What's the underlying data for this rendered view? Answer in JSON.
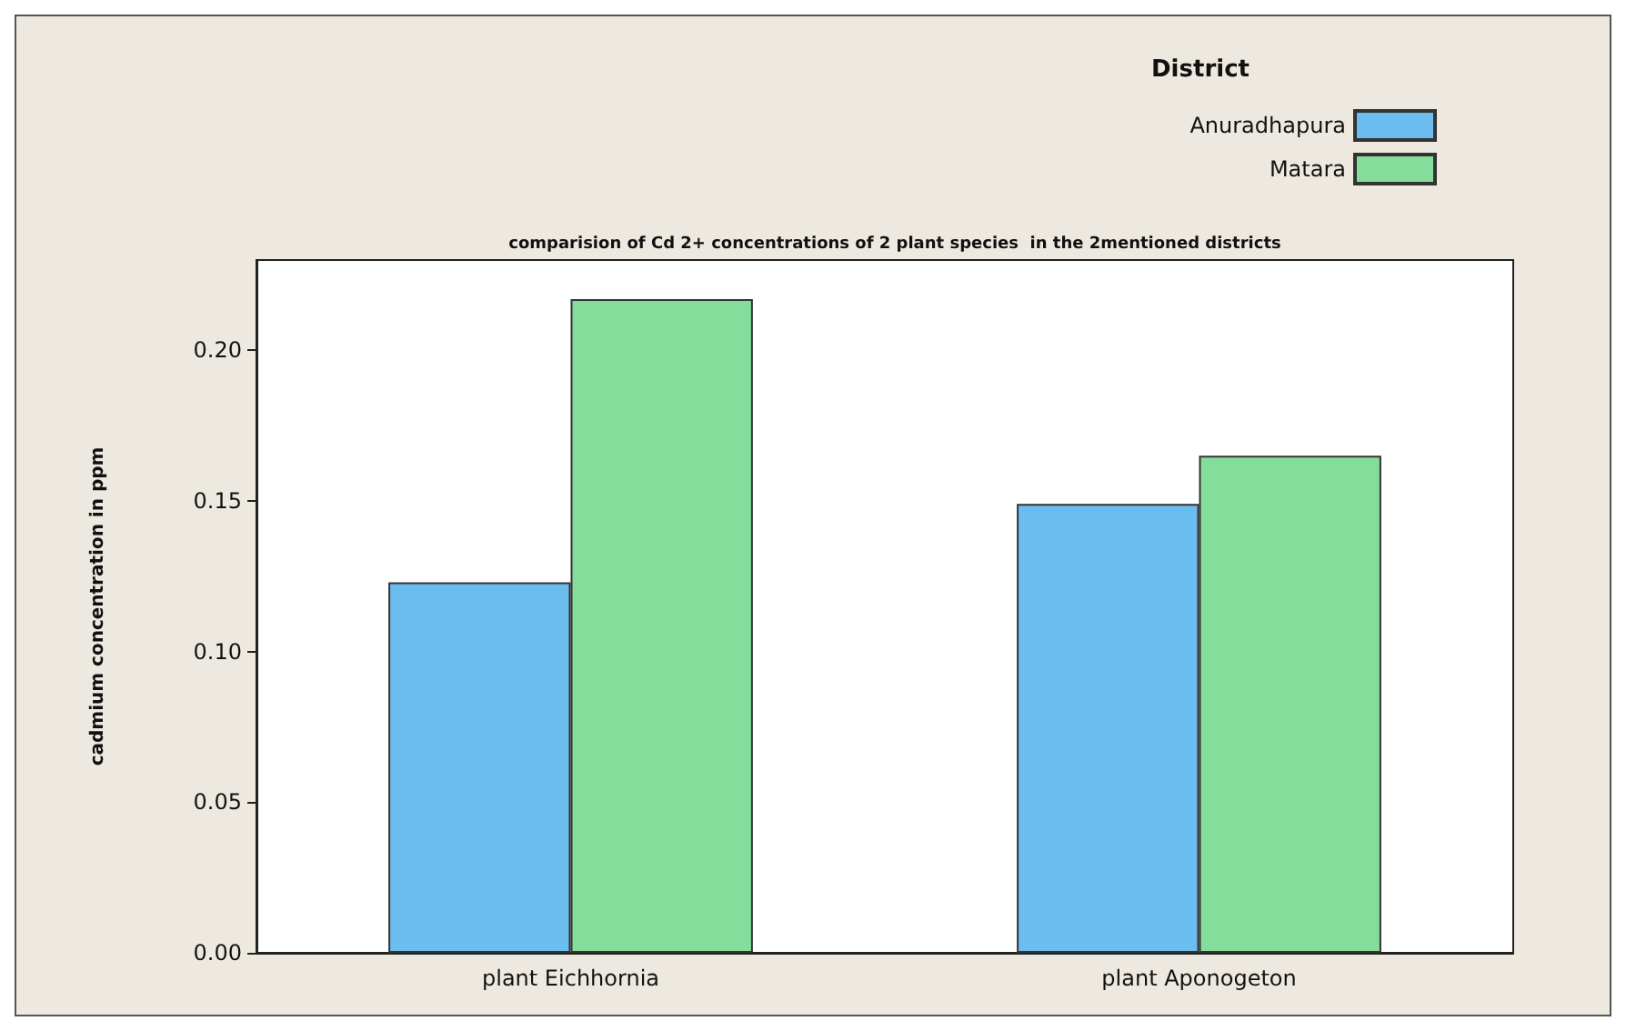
{
  "chart_data": {
    "type": "bar",
    "title": "comparision of Cd 2+ concentrations of 2 plant species  in the 2mentioned districts",
    "ylabel": "cadmium concentration in ppm",
    "legend_title": "District",
    "legend": "top right",
    "grid": false,
    "categories": [
      "plant Eichhornia",
      "plant Aponogeton"
    ],
    "series": [
      {
        "name": "Anuradhapura",
        "color": "#6bbdf0",
        "values": [
          0.123,
          0.149
        ]
      },
      {
        "name": "Matara",
        "color": "#85dd9b",
        "values": [
          0.217,
          0.165
        ]
      }
    ],
    "ylim": [
      0,
      0.23
    ],
    "yticks": [
      {
        "value": 0,
        "label": "0.00"
      },
      {
        "value": 0.05,
        "label": "0.05"
      },
      {
        "value": 0.1,
        "label": "0.10"
      },
      {
        "value": 0.15,
        "label": "0.15"
      },
      {
        "value": 0.2,
        "label": "0.20"
      }
    ]
  }
}
